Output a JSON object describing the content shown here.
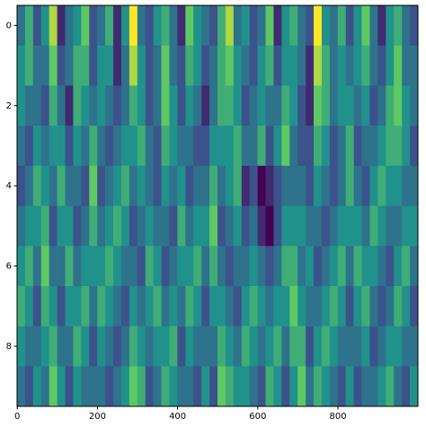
{
  "chart_data": {
    "type": "heatmap",
    "cmap": "viridis",
    "xlim": [
      -0.5,
      999.5
    ],
    "ylim": [
      9.5,
      -0.5
    ],
    "xticks": [
      0,
      200,
      400,
      600,
      800
    ],
    "yticks": [
      0,
      2,
      4,
      6,
      8
    ],
    "z": [
      [
        4,
        6,
        3,
        5,
        8,
        2,
        4,
        5,
        7,
        3,
        4,
        6,
        2,
        5,
        9,
        4,
        3,
        5,
        6,
        4,
        2,
        7,
        5,
        4,
        3,
        6,
        8,
        4,
        5,
        3,
        4,
        7,
        2,
        5,
        6,
        4,
        3,
        9,
        5,
        4,
        6,
        3,
        5,
        7,
        4,
        2,
        5,
        6,
        4,
        3
      ],
      [
        5,
        6,
        4,
        4,
        7,
        3,
        4,
        6,
        6,
        3,
        5,
        5,
        2,
        4,
        8,
        5,
        3,
        4,
        7,
        4,
        3,
        6,
        5,
        3,
        4,
        6,
        7,
        5,
        4,
        3,
        5,
        6,
        3,
        5,
        5,
        4,
        2,
        8,
        6,
        4,
        5,
        4,
        5,
        6,
        4,
        3,
        5,
        7,
        4,
        4
      ],
      [
        5,
        4,
        4,
        3,
        6,
        4,
        2,
        6,
        5,
        4,
        5,
        4,
        3,
        4,
        6,
        5,
        3,
        4,
        7,
        5,
        3,
        5,
        4,
        2,
        4,
        6,
        6,
        5,
        3,
        4,
        5,
        4,
        4,
        6,
        5,
        3,
        2,
        7,
        6,
        4,
        5,
        5,
        4,
        5,
        3,
        4,
        6,
        7,
        5,
        4
      ],
      [
        4,
        3,
        5,
        4,
        5,
        5,
        3,
        5,
        4,
        6,
        4,
        3,
        4,
        5,
        5,
        6,
        4,
        3,
        6,
        5,
        4,
        4,
        3,
        3,
        5,
        5,
        5,
        6,
        4,
        4,
        6,
        3,
        5,
        7,
        4,
        3,
        3,
        6,
        5,
        3,
        4,
        6,
        3,
        4,
        4,
        5,
        6,
        6,
        5,
        3
      ],
      [
        3,
        4,
        6,
        5,
        4,
        6,
        4,
        4,
        3,
        7,
        3,
        4,
        5,
        6,
        4,
        5,
        4,
        3,
        5,
        4,
        5,
        3,
        4,
        4,
        6,
        4,
        5,
        6,
        2,
        3,
        1,
        2,
        3,
        4,
        4,
        4,
        3,
        5,
        4,
        3,
        4,
        6,
        4,
        3,
        5,
        6,
        5,
        5,
        4,
        4
      ],
      [
        4,
        5,
        5,
        6,
        3,
        5,
        5,
        3,
        4,
        6,
        4,
        5,
        6,
        5,
        3,
        4,
        5,
        4,
        4,
        3,
        6,
        4,
        5,
        5,
        7,
        3,
        4,
        5,
        3,
        4,
        2,
        1,
        3,
        5,
        5,
        5,
        4,
        4,
        3,
        4,
        5,
        5,
        5,
        4,
        6,
        5,
        4,
        4,
        5,
        5
      ],
      [
        5,
        6,
        4,
        7,
        4,
        4,
        6,
        4,
        5,
        5,
        5,
        6,
        5,
        4,
        4,
        3,
        6,
        5,
        3,
        4,
        5,
        5,
        6,
        4,
        6,
        4,
        3,
        4,
        4,
        5,
        4,
        3,
        4,
        6,
        6,
        4,
        5,
        3,
        4,
        5,
        6,
        4,
        6,
        5,
        5,
        4,
        3,
        5,
        6,
        4
      ],
      [
        6,
        5,
        3,
        6,
        5,
        3,
        5,
        5,
        6,
        4,
        6,
        5,
        4,
        3,
        5,
        4,
        5,
        6,
        4,
        5,
        4,
        6,
        5,
        3,
        5,
        5,
        4,
        3,
        5,
        6,
        5,
        4,
        5,
        5,
        7,
        5,
        4,
        4,
        5,
        6,
        5,
        3,
        5,
        6,
        4,
        3,
        4,
        6,
        5,
        3
      ],
      [
        5,
        4,
        4,
        5,
        6,
        4,
        4,
        6,
        5,
        3,
        5,
        4,
        3,
        4,
        6,
        5,
        4,
        5,
        5,
        6,
        3,
        5,
        4,
        4,
        4,
        6,
        5,
        4,
        6,
        5,
        4,
        5,
        6,
        4,
        6,
        6,
        3,
        5,
        6,
        5,
        4,
        4,
        4,
        5,
        3,
        4,
        5,
        5,
        4,
        4
      ],
      [
        4,
        3,
        5,
        4,
        7,
        5,
        3,
        5,
        4,
        4,
        4,
        3,
        4,
        5,
        7,
        6,
        3,
        4,
        6,
        5,
        4,
        4,
        3,
        5,
        3,
        7,
        6,
        5,
        5,
        4,
        3,
        6,
        5,
        3,
        5,
        7,
        4,
        6,
        5,
        4,
        3,
        5,
        3,
        4,
        4,
        5,
        6,
        4,
        3,
        5
      ]
    ]
  }
}
